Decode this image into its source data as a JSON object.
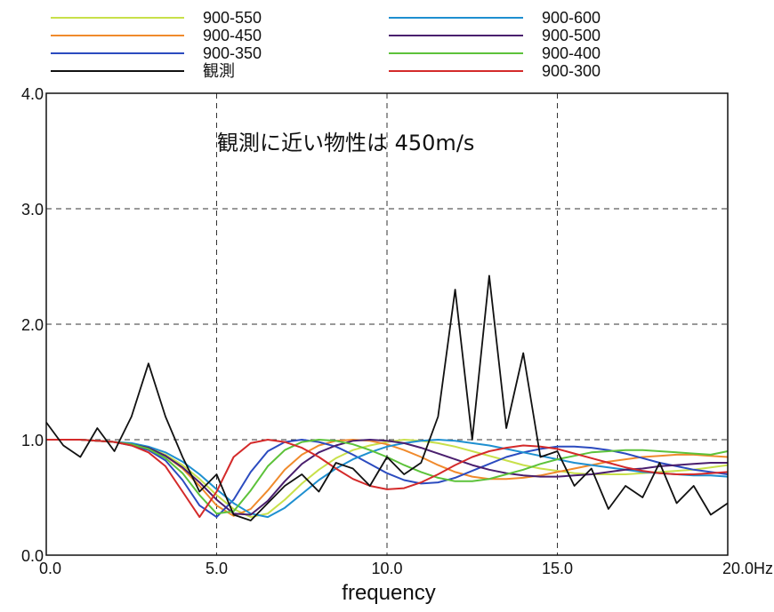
{
  "chart_data": {
    "type": "line",
    "xlabel": "frequency",
    "ylabel": "",
    "xlim": [
      0,
      20
    ],
    "ylim": [
      0,
      4
    ],
    "x_unit": "Hz",
    "x_ticks": [
      0,
      5,
      10,
      15,
      20
    ],
    "x_tick_labels": [
      "0.0",
      "5.0",
      "10.0",
      "15.0",
      "20.0Hz"
    ],
    "y_ticks": [
      0,
      1,
      2,
      3,
      4
    ],
    "y_tick_labels": [
      "0.0",
      "1.0",
      "2.0",
      "3.0",
      "4.0"
    ],
    "grid": true,
    "legend_position": "top",
    "annotation": "観測に近い物性は 450m/s",
    "x": [
      0.0,
      0.5,
      1.0,
      1.5,
      2.0,
      2.5,
      3.0,
      3.5,
      4.0,
      4.5,
      5.0,
      5.5,
      6.0,
      6.5,
      7.0,
      7.5,
      8.0,
      8.5,
      9.0,
      9.5,
      10.0,
      10.5,
      11.0,
      11.5,
      12.0,
      12.5,
      13.0,
      13.5,
      14.0,
      14.5,
      15.0,
      15.5,
      16.0,
      16.5,
      17.0,
      17.5,
      18.0,
      18.5,
      19.0,
      19.5,
      20.0
    ],
    "series": [
      {
        "name": "900-550",
        "color": "#c8e04a",
        "values": [
          1.0,
          1.0,
          1.0,
          0.99,
          0.98,
          0.96,
          0.93,
          0.87,
          0.78,
          0.66,
          0.52,
          0.4,
          0.33,
          0.36,
          0.48,
          0.62,
          0.74,
          0.84,
          0.91,
          0.95,
          0.98,
          1.0,
          0.99,
          0.97,
          0.94,
          0.9,
          0.86,
          0.82,
          0.78,
          0.75,
          0.73,
          0.71,
          0.7,
          0.7,
          0.7,
          0.71,
          0.72,
          0.73,
          0.74,
          0.76,
          0.78
        ]
      },
      {
        "name": "900-450",
        "color": "#f08a2c",
        "values": [
          1.0,
          1.0,
          1.0,
          0.99,
          0.98,
          0.96,
          0.92,
          0.86,
          0.75,
          0.6,
          0.43,
          0.34,
          0.4,
          0.56,
          0.74,
          0.87,
          0.95,
          0.99,
          1.0,
          0.99,
          0.96,
          0.91,
          0.85,
          0.78,
          0.72,
          0.68,
          0.66,
          0.66,
          0.67,
          0.69,
          0.72,
          0.75,
          0.78,
          0.81,
          0.83,
          0.85,
          0.86,
          0.87,
          0.87,
          0.86,
          0.85
        ]
      },
      {
        "name": "900-350",
        "color": "#2b4bbf",
        "values": [
          1.0,
          1.0,
          1.0,
          0.99,
          0.98,
          0.95,
          0.91,
          0.82,
          0.65,
          0.43,
          0.33,
          0.48,
          0.72,
          0.9,
          0.98,
          1.0,
          0.98,
          0.94,
          0.87,
          0.79,
          0.71,
          0.65,
          0.62,
          0.63,
          0.67,
          0.73,
          0.79,
          0.85,
          0.89,
          0.92,
          0.94,
          0.94,
          0.93,
          0.91,
          0.88,
          0.84,
          0.8,
          0.77,
          0.74,
          0.72,
          0.7
        ]
      },
      {
        "name": "観測",
        "color": "#111111",
        "values": [
          1.15,
          0.95,
          0.85,
          1.1,
          0.9,
          1.2,
          1.66,
          1.2,
          0.85,
          0.55,
          0.7,
          0.35,
          0.3,
          0.45,
          0.6,
          0.7,
          0.55,
          0.8,
          0.75,
          0.6,
          0.85,
          0.7,
          0.8,
          1.2,
          2.3,
          1.0,
          2.42,
          1.1,
          1.75,
          0.85,
          0.9,
          0.6,
          0.75,
          0.4,
          0.6,
          0.5,
          0.8,
          0.45,
          0.6,
          0.35,
          0.45
        ]
      },
      {
        "name": "900-600",
        "color": "#1e8fd0",
        "values": [
          1.0,
          1.0,
          1.0,
          0.99,
          0.98,
          0.97,
          0.94,
          0.89,
          0.81,
          0.7,
          0.57,
          0.45,
          0.36,
          0.33,
          0.41,
          0.53,
          0.65,
          0.75,
          0.83,
          0.89,
          0.94,
          0.97,
          0.99,
          1.0,
          0.99,
          0.97,
          0.95,
          0.92,
          0.89,
          0.86,
          0.83,
          0.8,
          0.78,
          0.76,
          0.74,
          0.72,
          0.71,
          0.7,
          0.69,
          0.69,
          0.68
        ]
      },
      {
        "name": "900-500",
        "color": "#4a1f6e",
        "values": [
          1.0,
          1.0,
          1.0,
          0.99,
          0.98,
          0.96,
          0.93,
          0.86,
          0.76,
          0.63,
          0.48,
          0.36,
          0.35,
          0.47,
          0.64,
          0.79,
          0.89,
          0.95,
          0.99,
          1.0,
          0.99,
          0.97,
          0.93,
          0.88,
          0.83,
          0.78,
          0.74,
          0.71,
          0.69,
          0.68,
          0.68,
          0.69,
          0.7,
          0.72,
          0.74,
          0.75,
          0.77,
          0.78,
          0.79,
          0.8,
          0.8
        ]
      },
      {
        "name": "900-400",
        "color": "#5cc23a",
        "values": [
          1.0,
          1.0,
          1.0,
          0.99,
          0.98,
          0.96,
          0.92,
          0.84,
          0.71,
          0.52,
          0.36,
          0.38,
          0.56,
          0.77,
          0.91,
          0.98,
          1.0,
          0.99,
          0.96,
          0.91,
          0.85,
          0.78,
          0.72,
          0.67,
          0.64,
          0.64,
          0.66,
          0.7,
          0.74,
          0.79,
          0.83,
          0.86,
          0.89,
          0.9,
          0.91,
          0.91,
          0.9,
          0.89,
          0.88,
          0.87,
          0.9
        ]
      },
      {
        "name": "900-300",
        "color": "#d42a2a",
        "values": [
          1.0,
          1.0,
          1.0,
          0.99,
          0.98,
          0.95,
          0.89,
          0.77,
          0.55,
          0.33,
          0.55,
          0.85,
          0.97,
          1.0,
          0.98,
          0.93,
          0.85,
          0.75,
          0.66,
          0.6,
          0.57,
          0.58,
          0.63,
          0.7,
          0.78,
          0.85,
          0.9,
          0.93,
          0.95,
          0.94,
          0.92,
          0.88,
          0.84,
          0.8,
          0.76,
          0.73,
          0.71,
          0.7,
          0.7,
          0.71,
          0.72
        ]
      }
    ]
  }
}
